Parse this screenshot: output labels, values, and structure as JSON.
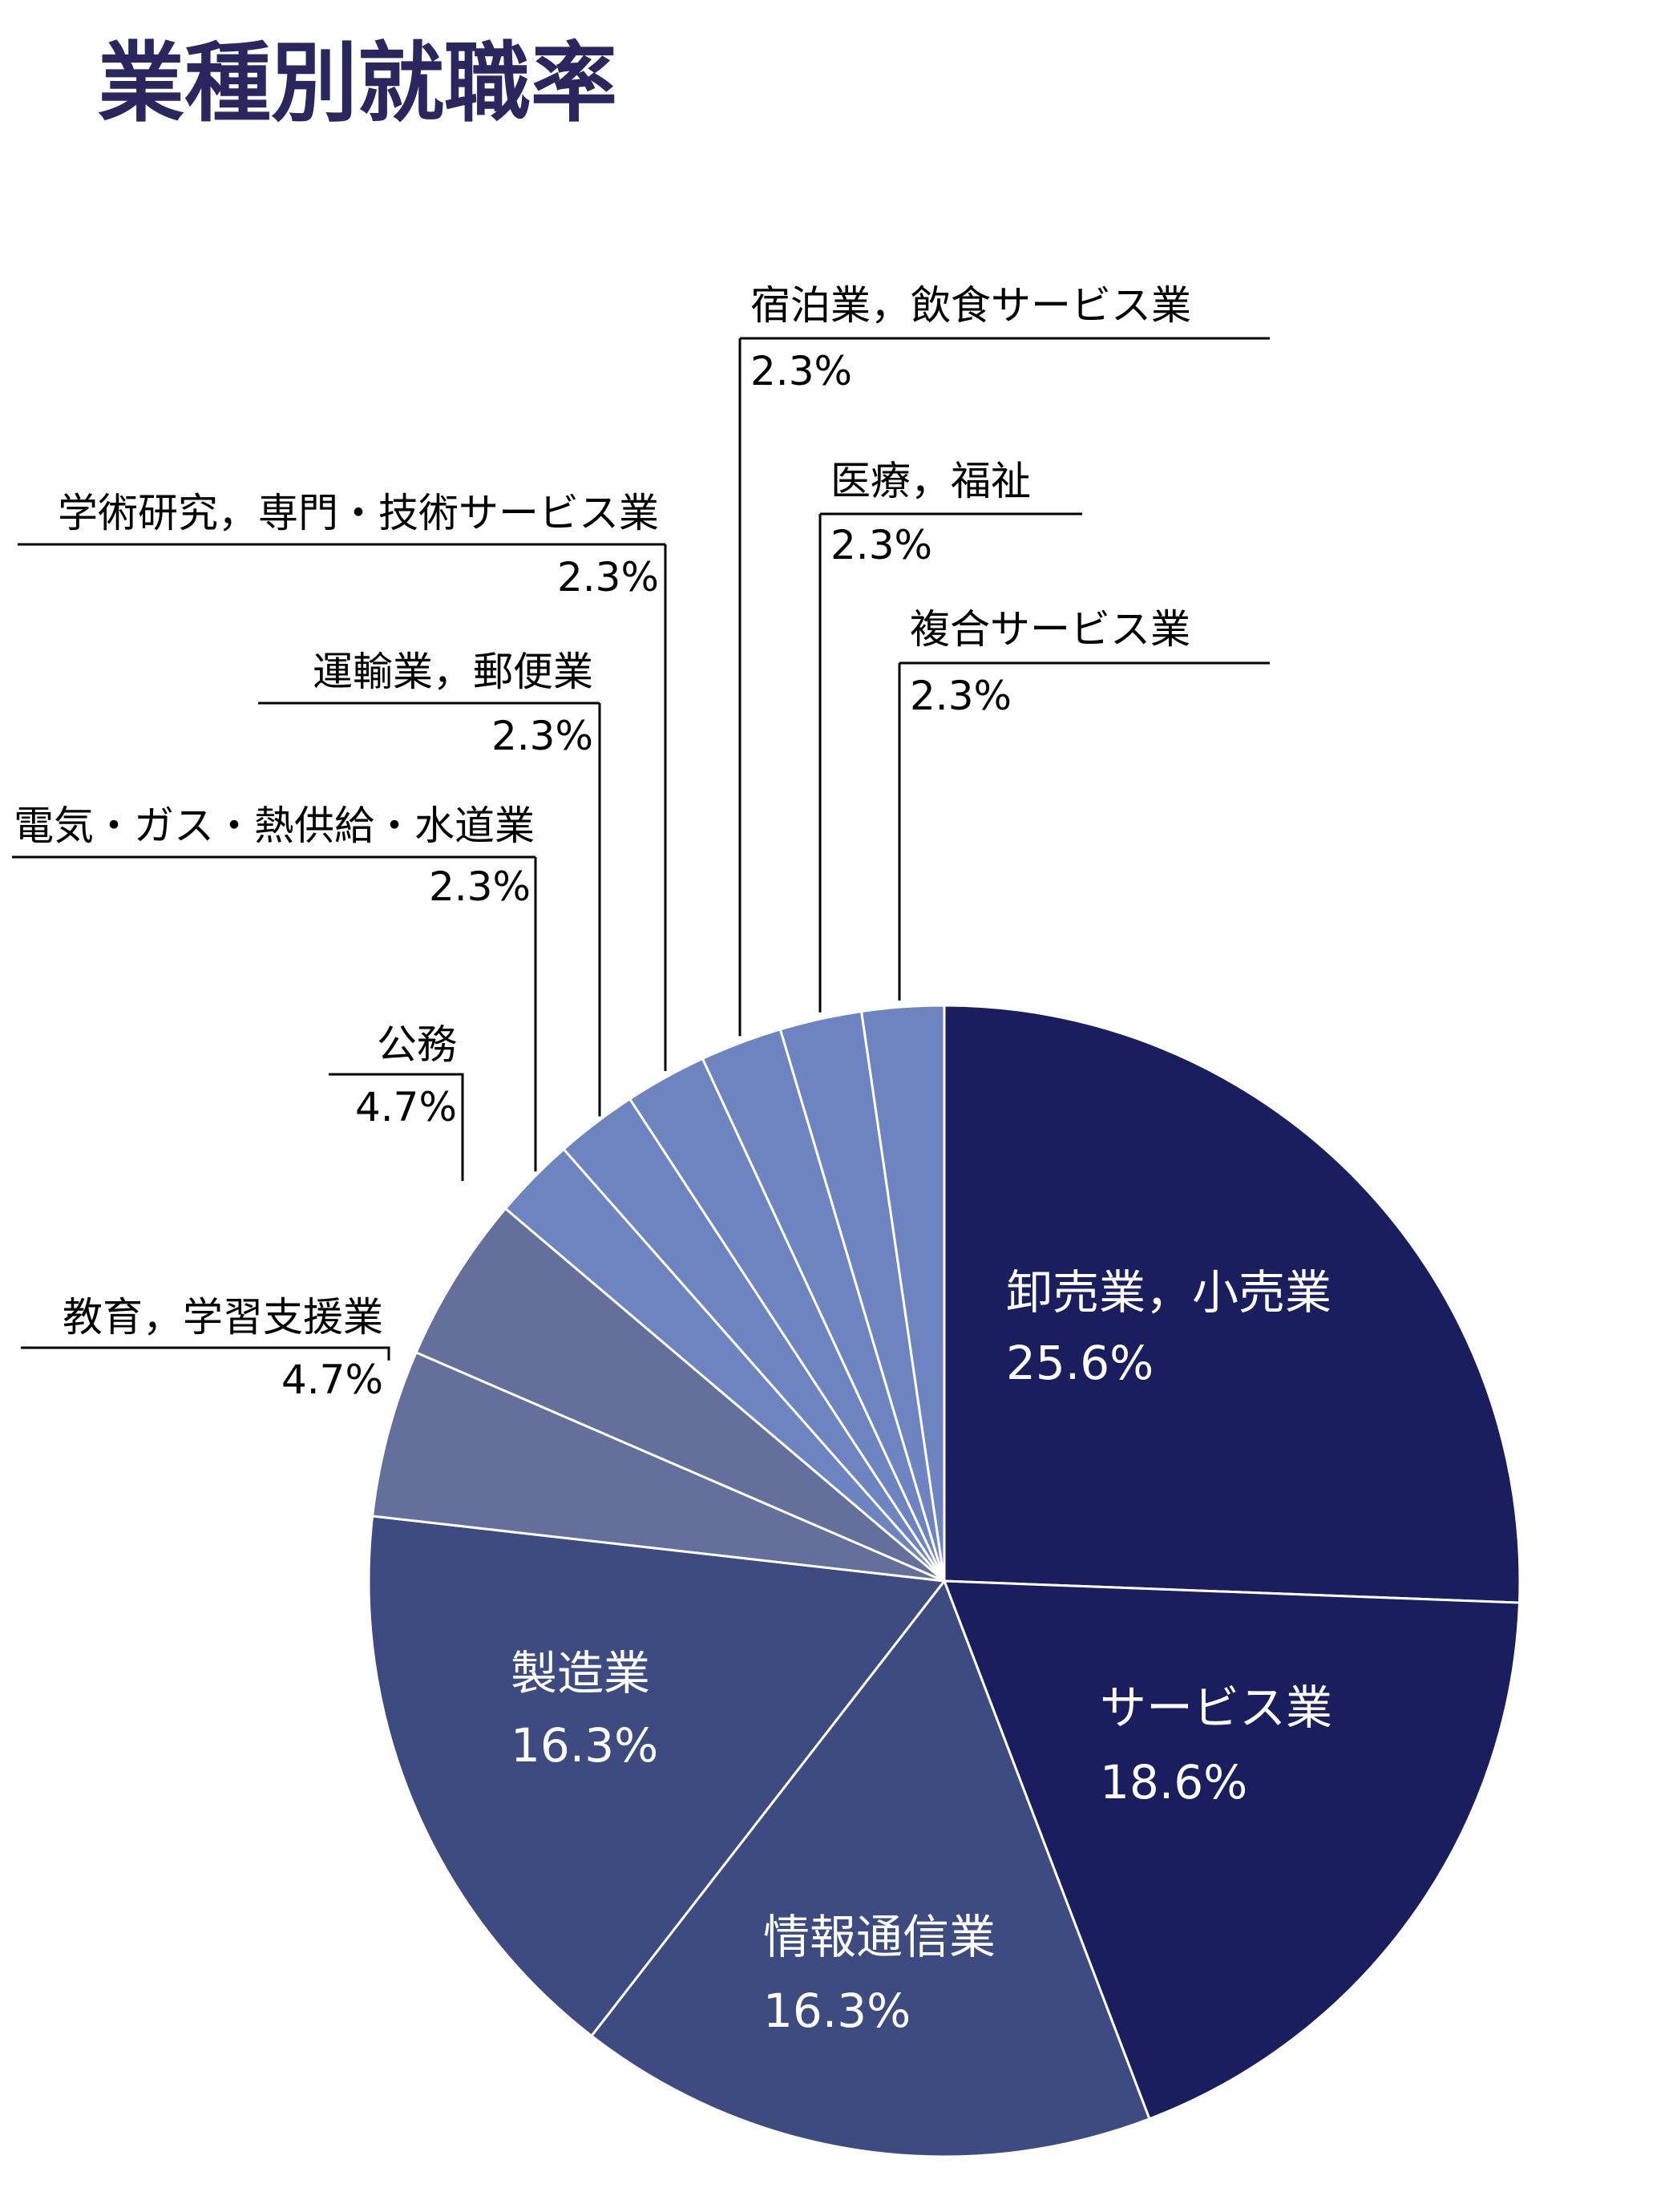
{
  "chart_data": {
    "type": "pie",
    "title": "業種別就職率",
    "slices": [
      {
        "label": "卸売業，小売業",
        "value": 25.6,
        "value_label": "25.6%",
        "color": "#1a1d5e"
      },
      {
        "label": "サービス業",
        "value": 18.6,
        "value_label": "18.6%",
        "color": "#1a1d5e"
      },
      {
        "label": "情報通信業",
        "value": 16.3,
        "value_label": "16.3%",
        "color": "#3d4b80"
      },
      {
        "label": "製造業",
        "value": 16.3,
        "value_label": "16.3%",
        "color": "#3d4b80"
      },
      {
        "label": "教育，学習支援業",
        "value": 4.7,
        "value_label": "4.7%",
        "color": "#646f9b"
      },
      {
        "label": "公務",
        "value": 4.7,
        "value_label": "4.7%",
        "color": "#646f9b"
      },
      {
        "label": "電気・ガス・熱供給・水道業",
        "value": 2.3,
        "value_label": "2.3%",
        "color": "#6e84c0"
      },
      {
        "label": "運輸業，郵便業",
        "value": 2.3,
        "value_label": "2.3%",
        "color": "#6e84c0"
      },
      {
        "label": "学術研究，専門・技術サービス業",
        "value": 2.3,
        "value_label": "2.3%",
        "color": "#6e84c0"
      },
      {
        "label": "宿泊業，飲食サービス業",
        "value": 2.3,
        "value_label": "2.3%",
        "color": "#6e84c0"
      },
      {
        "label": "医療，福祉",
        "value": 2.3,
        "value_label": "2.3%",
        "color": "#6e84c0"
      },
      {
        "label": "複合サービス業",
        "value": 2.3,
        "value_label": "2.3%",
        "color": "#6e84c0"
      }
    ],
    "start": "12 o'clock",
    "direction": "clockwise",
    "colors": {
      "title": "#2a275f",
      "inside_label": "#ffffff",
      "outside_label": "#000000",
      "slice_border": "#ffffff"
    }
  }
}
